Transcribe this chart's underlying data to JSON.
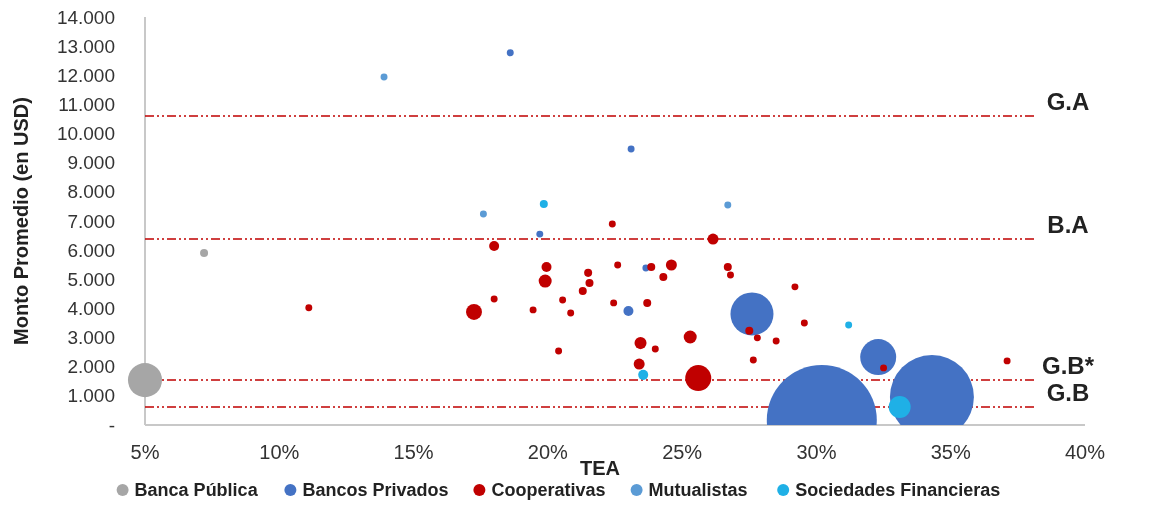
{
  "chart_data": {
    "type": "bubble",
    "xlabel": "TEA",
    "ylabel": "Monto Promedio (en USD)",
    "xlim": [
      5,
      40
    ],
    "xticks": [
      {
        "value": 5,
        "label": "5%"
      },
      {
        "value": 10,
        "label": "10%"
      },
      {
        "value": 15,
        "label": "15%"
      },
      {
        "value": 20,
        "label": "20%"
      },
      {
        "value": 25,
        "label": "25%"
      },
      {
        "value": 30,
        "label": "30%"
      },
      {
        "value": 35,
        "label": "35%"
      },
      {
        "value": 40,
        "label": "40%"
      }
    ],
    "ylim": [
      0,
      14000
    ],
    "yticks": [
      {
        "value": 0,
        "label": "-"
      },
      {
        "value": 1000,
        "label": "1.000"
      },
      {
        "value": 2000,
        "label": "2.000"
      },
      {
        "value": 3000,
        "label": "3.000"
      },
      {
        "value": 4000,
        "label": "4.000"
      },
      {
        "value": 5000,
        "label": "5.000"
      },
      {
        "value": 6000,
        "label": "6.000"
      },
      {
        "value": 7000,
        "label": "7.000"
      },
      {
        "value": 8000,
        "label": "8.000"
      },
      {
        "value": 9000,
        "label": "9.000"
      },
      {
        "value": 10000,
        "label": "10.000"
      },
      {
        "value": 11000,
        "label": "11.000"
      },
      {
        "value": 12000,
        "label": "12.000"
      },
      {
        "value": 13000,
        "label": "13.000"
      },
      {
        "value": 14000,
        "label": "14.000"
      }
    ],
    "grid": false,
    "legend": "bottom",
    "series": [
      {
        "name": "Banca Pública",
        "color": "#a6a6a6",
        "x": [
          5,
          7.2
        ],
        "values": [
          1540,
          5900
        ],
        "sizes": [
          0.096,
          0.0053
        ]
      },
      {
        "name": "Bancos Privados",
        "color": "#4472c4",
        "x": [
          30.2,
          34.3,
          32.3,
          27.6,
          23.0,
          23.65,
          18.6,
          23.1,
          19.7
        ],
        "values": [
          170,
          960,
          2330,
          3810,
          3910,
          5390,
          12770,
          9470,
          6550
        ],
        "sizes": [
          1,
          0.583,
          0.107,
          0.153,
          0.0083,
          0.004,
          0.004,
          0.004,
          0.004
        ]
      },
      {
        "name": "Cooperativas",
        "color": "#c00000",
        "x": [
          18.0,
          19.95,
          19.9,
          18.0,
          19.45,
          17.25,
          11.1,
          22.4,
          26.15,
          22.6,
          23.85,
          24.6,
          26.7,
          26.8,
          21.5,
          21.55,
          24.3,
          21.3,
          20.55,
          20.85,
          23.7,
          29.2,
          29.55,
          23.45,
          24.0,
          25.3,
          20.4,
          23.4,
          25.6,
          27.5,
          27.8,
          28.5,
          27.65,
          32.5,
          37.1,
          22.45
        ],
        "values": [
          6140,
          5420,
          4940,
          4320,
          3950,
          3880,
          4020,
          6900,
          6380,
          5490,
          5420,
          5490,
          5420,
          5150,
          5220,
          4870,
          5080,
          4600,
          4290,
          3840,
          4190,
          4740,
          3500,
          2810,
          2610,
          3020,
          2540,
          2090,
          1610,
          3230,
          2990,
          2880,
          2230,
          1960,
          2200,
          4190
        ],
        "sizes": [
          0.0083,
          0.0083,
          0.014,
          0.004,
          0.004,
          0.021,
          0.004,
          0.004,
          0.01,
          0.004,
          0.0053,
          0.01,
          0.0053,
          0.004,
          0.0053,
          0.0053,
          0.0053,
          0.0053,
          0.004,
          0.004,
          0.0053,
          0.004,
          0.004,
          0.012,
          0.004,
          0.014,
          0.004,
          0.01,
          0.056,
          0.0053,
          0.004,
          0.004,
          0.004,
          0.004,
          0.004,
          0.004
        ]
      },
      {
        "name": "Mutualistas",
        "color": "#5b9bd5",
        "x": [
          26.7,
          17.6,
          13.9
        ],
        "values": [
          7550,
          7240,
          11940
        ],
        "sizes": [
          0.004,
          0.004,
          0.004
        ]
      },
      {
        "name": "Sociedades Financieras",
        "color": "#1fb0e6",
        "x": [
          19.85,
          23.55,
          33.1,
          31.2
        ],
        "values": [
          7580,
          1720,
          620,
          3430
        ],
        "sizes": [
          0.0053,
          0.0083,
          0.04,
          0.004
        ]
      }
    ],
    "ref_lines": [
      {
        "axis": "y",
        "value": 10600,
        "label": "G.A",
        "color": "#c00000",
        "line_style": "dashed"
      },
      {
        "axis": "y",
        "value": 6380,
        "label": "B.A",
        "color": "#c00000",
        "line_style": "dashed"
      },
      {
        "axis": "y",
        "value": 1545,
        "label": "G.B*",
        "color": "#c00000",
        "line_style": "dashed"
      },
      {
        "axis": "y",
        "value": 620,
        "label": "G.B",
        "color": "#c00000",
        "line_style": "dashed"
      }
    ]
  }
}
